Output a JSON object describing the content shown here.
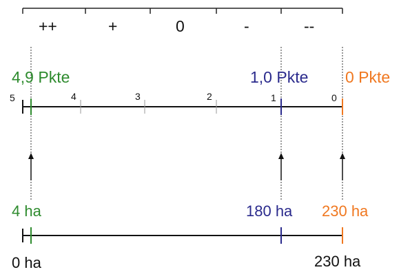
{
  "rating_scale": [
    "++",
    "+",
    "0",
    "-",
    "--"
  ],
  "score_axis": {
    "ticks": [
      "5",
      "4",
      "3",
      "2",
      "1",
      "0"
    ],
    "markers": [
      {
        "label": "4,9 Pkte",
        "color": "#2e8b2e"
      },
      {
        "label": "1,0 Pkte",
        "color": "#2a2a8c"
      },
      {
        "label": "0 Pkte",
        "color": "#f07820"
      }
    ]
  },
  "area_axis": {
    "start_label": "0 ha",
    "end_label": "230 ha",
    "markers": [
      {
        "label": "4 ha",
        "color": "#2e8b2e"
      },
      {
        "label": "180 ha",
        "color": "#2a2a8c"
      },
      {
        "label": "230 ha",
        "color": "#f07820"
      }
    ]
  }
}
